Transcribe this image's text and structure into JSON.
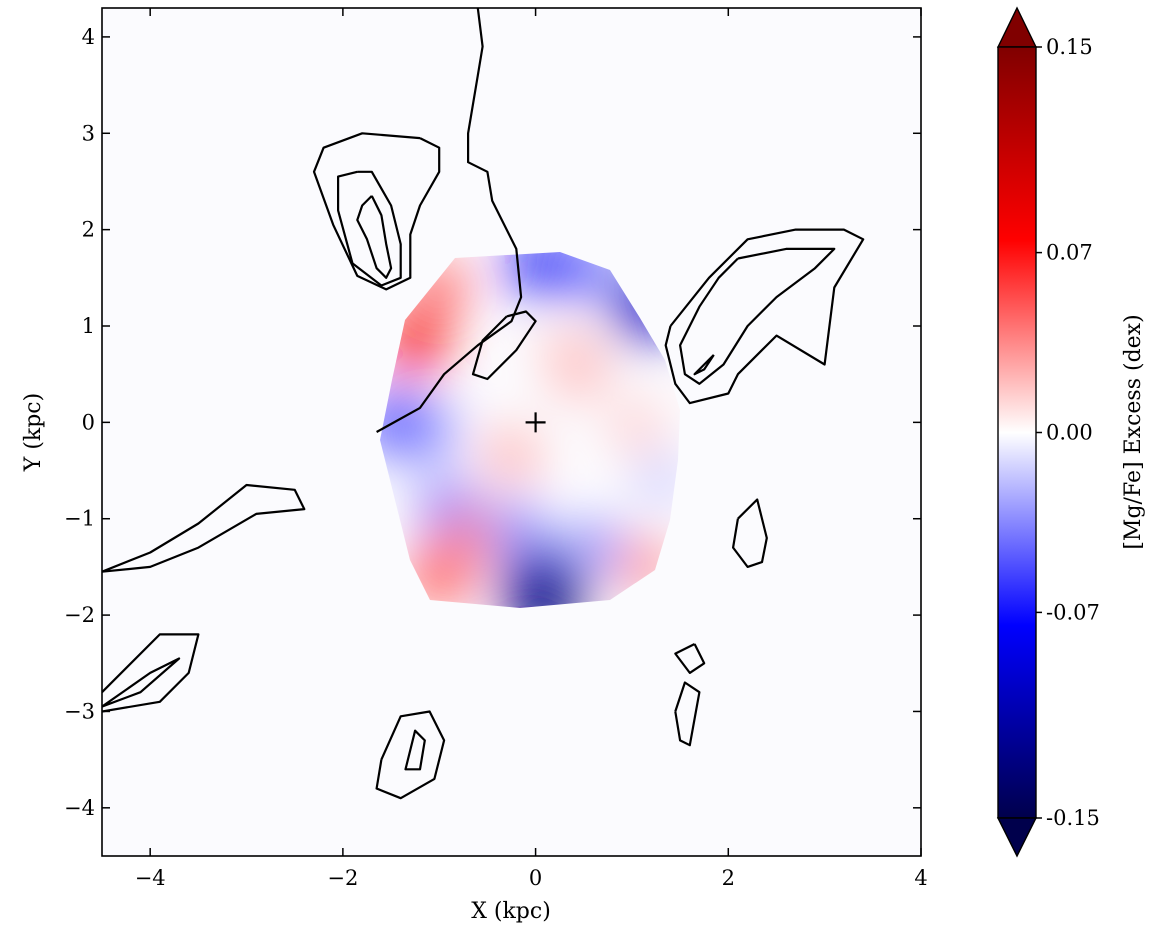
{
  "chart_data": {
    "type": "heatmap",
    "xlabel": "X (kpc)",
    "ylabel": "Y (kpc)",
    "xlim": [
      -4.5,
      4.0
    ],
    "ylim": [
      -4.5,
      4.3
    ],
    "x_ticks": [
      -4,
      -2,
      0,
      2,
      4
    ],
    "x_tick_labels": [
      "−4",
      "−2",
      "0",
      "2",
      "4"
    ],
    "y_ticks": [
      -4,
      -3,
      -2,
      -1,
      0,
      1,
      2,
      3,
      4
    ],
    "y_tick_labels": [
      "−4",
      "−3",
      "−2",
      "−1",
      "0",
      "1",
      "2",
      "3",
      "4"
    ],
    "center_marker": {
      "x": 0,
      "y": 0,
      "symbol": "+"
    },
    "map_region": {
      "x_range": [
        -1.65,
        1.5
      ],
      "y_range": [
        -1.9,
        1.75
      ]
    },
    "colorbar": {
      "label": "[Mg/Fe] Excess (dex)",
      "min": -0.15,
      "max": 0.15,
      "ticks": [
        0.15,
        0.07,
        0.0,
        -0.07,
        -0.15
      ],
      "tick_labels": [
        "0.15",
        "0.07",
        "0.00",
        "-0.07",
        "-0.15"
      ],
      "colormap": "seismic",
      "extend": "both"
    },
    "blobs": [
      {
        "x": -1.25,
        "y": 0.85,
        "value": 0.08
      },
      {
        "x": -1.0,
        "y": 1.4,
        "value": 0.05
      },
      {
        "x": -1.45,
        "y": 0.0,
        "value": -0.07
      },
      {
        "x": -1.1,
        "y": -0.1,
        "value": -0.04
      },
      {
        "x": -0.9,
        "y": -0.9,
        "value": -0.05
      },
      {
        "x": -1.0,
        "y": -1.6,
        "value": 0.06
      },
      {
        "x": -0.7,
        "y": -1.2,
        "value": 0.04
      },
      {
        "x": 0.05,
        "y": 1.65,
        "value": -0.08
      },
      {
        "x": 0.5,
        "y": 1.6,
        "value": -0.05
      },
      {
        "x": 1.15,
        "y": 1.2,
        "value": -0.1
      },
      {
        "x": 0.45,
        "y": 0.55,
        "value": 0.03
      },
      {
        "x": 0.35,
        "y": 0.75,
        "value": 0.02
      },
      {
        "x": -0.25,
        "y": -0.35,
        "value": 0.03
      },
      {
        "x": 1.05,
        "y": -0.05,
        "value": 0.02
      },
      {
        "x": 0.0,
        "y": -1.65,
        "value": -0.09
      },
      {
        "x": 0.1,
        "y": -1.85,
        "value": -0.13
      },
      {
        "x": 0.6,
        "y": -1.3,
        "value": -0.04
      },
      {
        "x": -0.2,
        "y": -1.1,
        "value": -0.04
      },
      {
        "x": 1.15,
        "y": -1.5,
        "value": 0.04
      },
      {
        "x": 1.3,
        "y": -0.6,
        "value": -0.02
      }
    ],
    "contours": [
      [
        [
          -0.6,
          4.3
        ],
        [
          -0.55,
          3.9
        ],
        [
          -0.6,
          3.6
        ],
        [
          -0.7,
          3.0
        ],
        [
          -0.7,
          2.7
        ],
        [
          -0.5,
          2.6
        ],
        [
          -0.45,
          2.3
        ],
        [
          -0.2,
          1.8
        ],
        [
          -0.15,
          1.3
        ],
        [
          -0.25,
          1.05
        ],
        [
          -0.6,
          0.8
        ],
        [
          -0.95,
          0.5
        ],
        [
          -1.2,
          0.15
        ],
        [
          -1.65,
          -0.1
        ]
      ],
      [
        [
          -1.7,
          2.35
        ],
        [
          -1.8,
          2.25
        ],
        [
          -1.85,
          2.1
        ],
        [
          -1.75,
          1.9
        ],
        [
          -1.65,
          1.6
        ],
        [
          -1.55,
          1.5
        ],
        [
          -1.5,
          1.6
        ],
        [
          -1.55,
          1.85
        ],
        [
          -1.6,
          2.15
        ],
        [
          -1.7,
          2.35
        ]
      ],
      [
        [
          -1.85,
          2.6
        ],
        [
          -2.05,
          2.55
        ],
        [
          -2.05,
          2.2
        ],
        [
          -1.9,
          1.65
        ],
        [
          -1.6,
          1.42
        ],
        [
          -1.4,
          1.5
        ],
        [
          -1.4,
          1.85
        ],
        [
          -1.5,
          2.25
        ],
        [
          -1.7,
          2.6
        ],
        [
          -1.85,
          2.6
        ]
      ],
      [
        [
          -1.2,
          2.95
        ],
        [
          -1.8,
          3.0
        ],
        [
          -2.2,
          2.85
        ],
        [
          -2.3,
          2.6
        ],
        [
          -2.1,
          2.05
        ],
        [
          -1.85,
          1.52
        ],
        [
          -1.55,
          1.38
        ],
        [
          -1.3,
          1.5
        ],
        [
          -1.3,
          1.95
        ],
        [
          -1.2,
          2.25
        ],
        [
          -1.0,
          2.6
        ],
        [
          -1.0,
          2.85
        ],
        [
          -1.2,
          2.95
        ]
      ],
      [
        [
          -0.3,
          1.1
        ],
        [
          -0.55,
          0.85
        ],
        [
          -0.65,
          0.5
        ],
        [
          -0.5,
          0.45
        ],
        [
          -0.2,
          0.75
        ],
        [
          0.0,
          1.05
        ],
        [
          -0.1,
          1.15
        ],
        [
          -0.3,
          1.1
        ]
      ],
      [
        [
          1.85,
          0.7
        ],
        [
          1.75,
          0.55
        ],
        [
          1.65,
          0.5
        ],
        [
          1.75,
          0.6
        ],
        [
          1.85,
          0.7
        ]
      ],
      [
        [
          2.1,
          1.7
        ],
        [
          2.6,
          1.8
        ],
        [
          3.1,
          1.8
        ],
        [
          2.9,
          1.6
        ],
        [
          2.5,
          1.3
        ],
        [
          2.2,
          1.0
        ],
        [
          1.95,
          0.6
        ],
        [
          1.7,
          0.4
        ],
        [
          1.55,
          0.5
        ],
        [
          1.5,
          0.8
        ],
        [
          1.7,
          1.2
        ],
        [
          1.9,
          1.5
        ],
        [
          2.1,
          1.7
        ]
      ],
      [
        [
          1.4,
          1.0
        ],
        [
          1.8,
          1.5
        ],
        [
          2.2,
          1.9
        ],
        [
          2.7,
          2.0
        ],
        [
          3.2,
          2.0
        ],
        [
          3.4,
          1.9
        ],
        [
          3.1,
          1.4
        ],
        [
          3.0,
          0.6
        ],
        [
          2.5,
          0.9
        ],
        [
          2.1,
          0.5
        ],
        [
          2.0,
          0.3
        ],
        [
          1.6,
          0.2
        ],
        [
          1.45,
          0.4
        ],
        [
          1.35,
          0.8
        ],
        [
          1.4,
          1.0
        ]
      ],
      [
        [
          -1.3,
          -3.4
        ],
        [
          -1.35,
          -3.6
        ],
        [
          -1.2,
          -3.6
        ],
        [
          -1.15,
          -3.3
        ],
        [
          -1.25,
          -3.2
        ],
        [
          -1.3,
          -3.4
        ]
      ],
      [
        [
          -1.6,
          -3.5
        ],
        [
          -1.65,
          -3.8
        ],
        [
          -1.4,
          -3.9
        ],
        [
          -1.05,
          -3.7
        ],
        [
          -0.95,
          -3.3
        ],
        [
          -1.1,
          -3.0
        ],
        [
          -1.4,
          -3.05
        ],
        [
          -1.6,
          -3.5
        ]
      ],
      [
        [
          1.65,
          -2.3
        ],
        [
          1.75,
          -2.5
        ],
        [
          1.6,
          -2.6
        ],
        [
          1.45,
          -2.4
        ],
        [
          1.65,
          -2.3
        ]
      ],
      [
        [
          2.1,
          -1.0
        ],
        [
          2.3,
          -0.8
        ],
        [
          2.4,
          -1.2
        ],
        [
          2.35,
          -1.45
        ],
        [
          2.2,
          -1.5
        ],
        [
          2.05,
          -1.3
        ],
        [
          2.1,
          -1.0
        ]
      ],
      [
        [
          1.45,
          -3.0
        ],
        [
          1.5,
          -3.3
        ],
        [
          1.6,
          -3.35
        ],
        [
          1.7,
          -2.8
        ],
        [
          1.55,
          -2.7
        ],
        [
          1.45,
          -3.0
        ]
      ],
      [
        [
          -4.5,
          -2.95
        ],
        [
          -4.0,
          -2.6
        ],
        [
          -3.7,
          -2.45
        ],
        [
          -4.1,
          -2.8
        ],
        [
          -4.5,
          -2.95
        ]
      ],
      [
        [
          -4.5,
          -2.8
        ],
        [
          -3.9,
          -2.2
        ],
        [
          -3.5,
          -2.2
        ],
        [
          -3.6,
          -2.6
        ],
        [
          -3.9,
          -2.9
        ],
        [
          -4.5,
          -3.0
        ]
      ],
      [
        [
          -4.5,
          -1.55
        ],
        [
          -4.0,
          -1.35
        ],
        [
          -3.5,
          -1.05
        ],
        [
          -3.0,
          -0.65
        ],
        [
          -2.5,
          -0.7
        ],
        [
          -2.4,
          -0.9
        ],
        [
          -2.9,
          -0.95
        ],
        [
          -3.5,
          -1.3
        ],
        [
          -4.0,
          -1.5
        ],
        [
          -4.5,
          -1.55
        ]
      ]
    ]
  }
}
